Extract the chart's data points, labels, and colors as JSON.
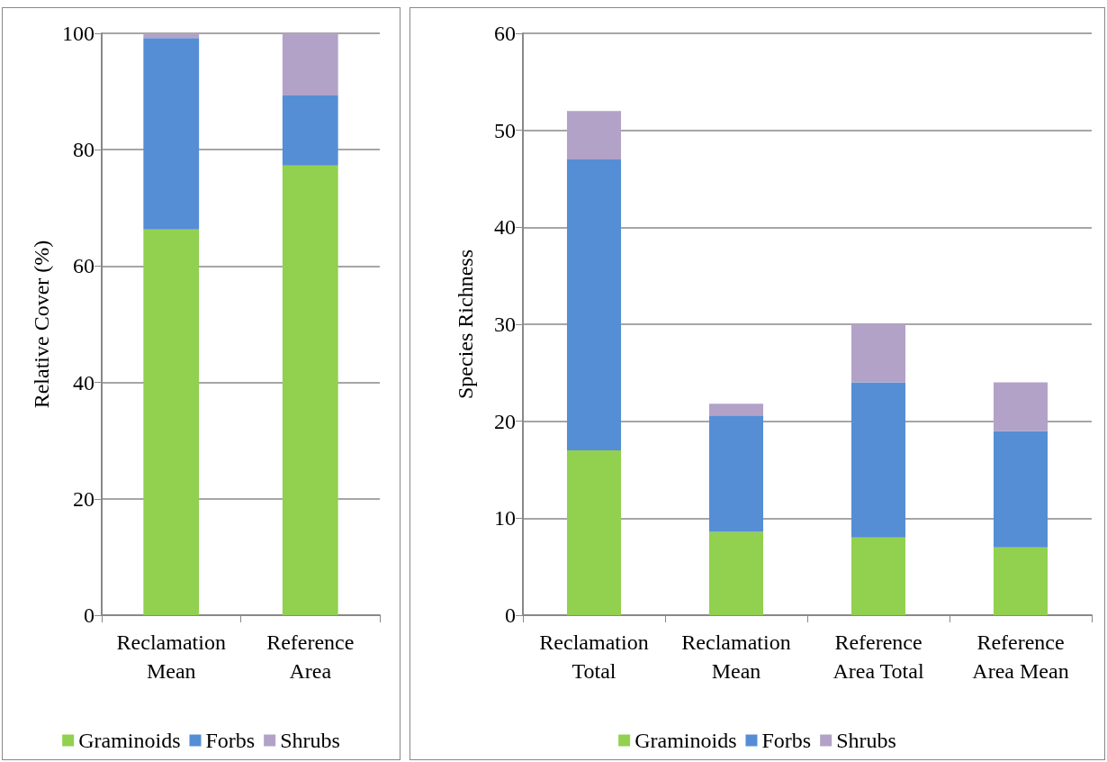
{
  "chart_data": [
    {
      "type": "bar",
      "stacked": true,
      "ylabel": "Relative Cover (%)",
      "categories": [
        "Reclamation Mean",
        "Reference Area"
      ],
      "ylim": [
        0,
        100
      ],
      "yticks": [
        0,
        20,
        40,
        60,
        80,
        100
      ],
      "grid": "y",
      "legend": "bottom",
      "series": [
        {
          "name": "Graminoids",
          "color": "#92d050",
          "values": [
            66.3,
            77.3
          ]
        },
        {
          "name": "Forbs",
          "color": "#558ed5",
          "values": [
            32.9,
            12.0
          ]
        },
        {
          "name": "Shrubs",
          "color": "#b3a2c7",
          "values": [
            0.8,
            10.7
          ]
        }
      ]
    },
    {
      "type": "bar",
      "stacked": true,
      "ylabel": "Species Richness",
      "categories": [
        "Reclamation Total",
        "Reclamation Mean",
        "Reference Area Total",
        "Reference Area Mean"
      ],
      "ylim": [
        0,
        60
      ],
      "yticks": [
        0,
        10,
        20,
        30,
        40,
        50,
        60
      ],
      "grid": "y",
      "legend": "bottom",
      "series": [
        {
          "name": "Graminoids",
          "color": "#92d050",
          "values": [
            17,
            8.6,
            8,
            7
          ]
        },
        {
          "name": "Forbs",
          "color": "#558ed5",
          "values": [
            30,
            12,
            16,
            12
          ]
        },
        {
          "name": "Shrubs",
          "color": "#b3a2c7",
          "values": [
            5,
            1.2,
            6,
            5
          ]
        }
      ]
    }
  ]
}
